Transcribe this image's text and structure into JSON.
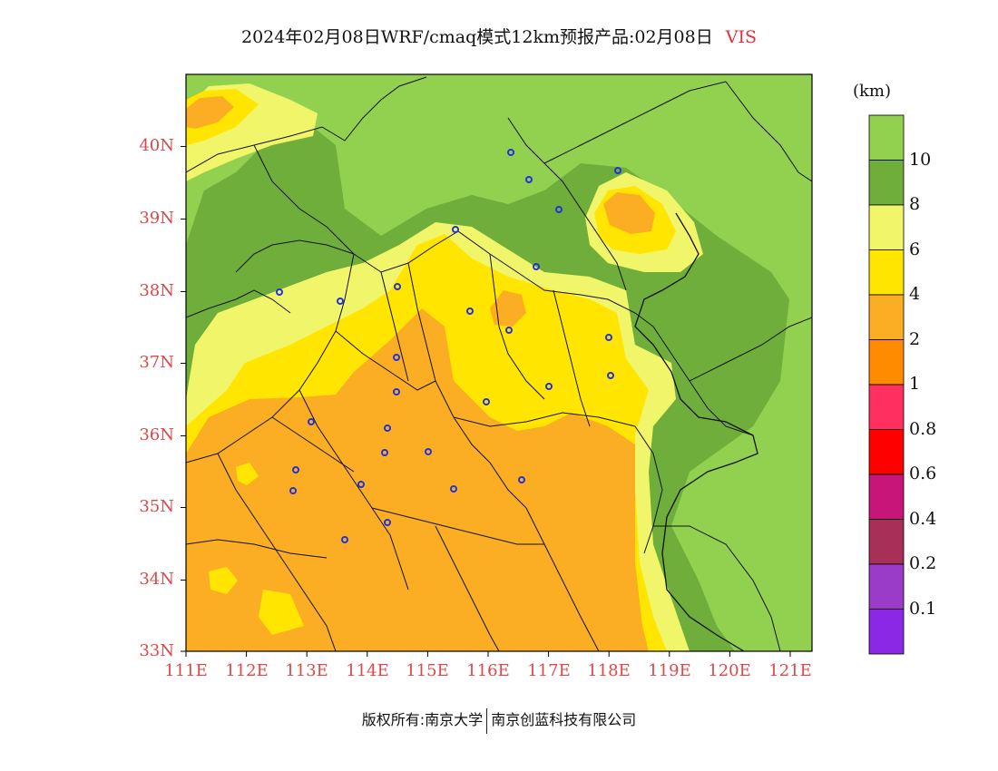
{
  "title": {
    "text": "2024年02月08日WRF/cmaq模式12km预报产品:02月08日",
    "variable": "VIS"
  },
  "legend": {
    "unit": "(km)",
    "levels": [
      {
        "label": "10",
        "color": "#92d050"
      },
      {
        "label": "8",
        "color": "#6fae3b"
      },
      {
        "label": "6",
        "color": "#f1f56a"
      },
      {
        "label": "4",
        "color": "#ffe500"
      },
      {
        "label": "2",
        "color": "#fbae24"
      },
      {
        "label": "1",
        "color": "#ff8c00"
      },
      {
        "label": "0.8",
        "color": "#ff3060"
      },
      {
        "label": "0.6",
        "color": "#ff0000"
      },
      {
        "label": "0.4",
        "color": "#c8157a"
      },
      {
        "label": "0.2",
        "color": "#a83058"
      },
      {
        "label": "0.1",
        "color": "#9a3cc8"
      },
      {
        "label": "",
        "color": "#8a28e6"
      }
    ]
  },
  "axes": {
    "lat": [
      "40N",
      "39N",
      "38N",
      "37N",
      "36N",
      "35N",
      "34N",
      "33N"
    ],
    "lon": [
      "111E",
      "112E",
      "113E",
      "114E",
      "115E",
      "116E",
      "117E",
      "118E",
      "119E",
      "120E",
      "121E"
    ]
  },
  "copyright": {
    "left": "版权所有:南京大学",
    "right": "南京创蓝科技有限公司"
  }
}
